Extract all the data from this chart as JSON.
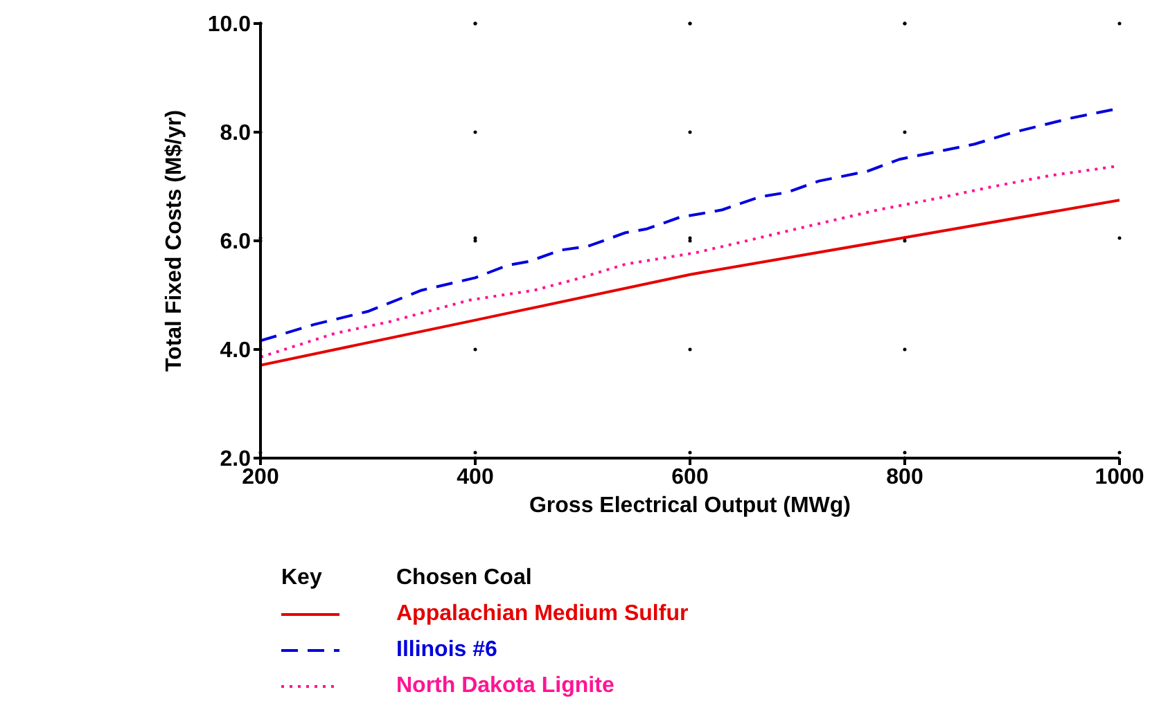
{
  "chart_data": {
    "type": "line",
    "xlabel": "Gross Electrical Output (MWg)",
    "ylabel": "Total Fixed Costs (M$/yr)",
    "legend_title": "Chosen Coal",
    "annotations": [
      "Key"
    ],
    "xlim": [
      200,
      1000
    ],
    "xticks": [
      200,
      400,
      600,
      800,
      1000
    ],
    "ylim": [
      2,
      10
    ],
    "yticks": [
      {
        "value": 2,
        "label": "2.0"
      },
      {
        "value": 4,
        "label": "4.0"
      },
      {
        "value": 6,
        "label": "6.0"
      },
      {
        "value": 8,
        "label": "8.0"
      },
      {
        "value": 10,
        "label": "10.0"
      }
    ],
    "grid": true,
    "legend": "bottom",
    "marker": "none",
    "series": [
      {
        "name": "Appalachian Medium Sulfur",
        "color": "#e60000",
        "line_style": "solid",
        "x": [
          200,
          400,
          600,
          800,
          1000
        ],
        "values": [
          3.71,
          4.54,
          5.38,
          6.06,
          6.75
        ]
      },
      {
        "name": "Illinois #6",
        "color": "#0000dd",
        "line_style": "dashed",
        "x": [
          200,
          250,
          300,
          350,
          400,
          430,
          450,
          480,
          505,
          540,
          560,
          590,
          630,
          665,
          690,
          720,
          765,
          795,
          865,
          900,
          955,
          1000
        ],
        "values": [
          4.16,
          4.46,
          4.7,
          5.09,
          5.32,
          5.55,
          5.62,
          5.83,
          5.9,
          6.15,
          6.22,
          6.43,
          6.57,
          6.81,
          6.89,
          7.1,
          7.28,
          7.5,
          7.78,
          7.99,
          8.26,
          8.44
        ]
      },
      {
        "name": "North Dakota Lignite",
        "color": "#ff1493",
        "line_style": "dotted",
        "x": [
          200,
          270,
          320,
          395,
          455,
          495,
          540,
          605,
          640,
          695,
          775,
          830,
          880,
          935,
          1000
        ],
        "values": [
          3.86,
          4.3,
          4.51,
          4.91,
          5.09,
          5.3,
          5.57,
          5.78,
          5.94,
          6.2,
          6.57,
          6.78,
          6.99,
          7.2,
          7.38
        ]
      }
    ]
  }
}
